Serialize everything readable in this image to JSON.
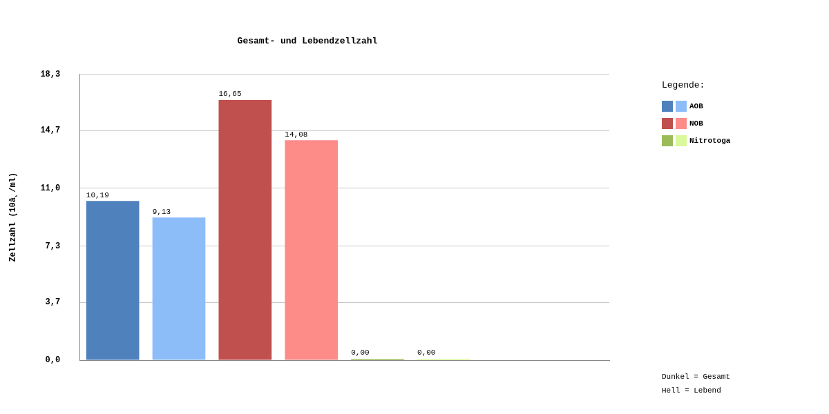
{
  "chart_data": {
    "type": "bar",
    "title": "Gesamt- und Lebendzellzahl",
    "ylabel": "Zellzahl (10â¸/ml)",
    "legend_title": "Legende:",
    "annotations": [
      "Dunkel = Gesamt",
      "Hell = Lebend"
    ],
    "categories": [
      null,
      null,
      null,
      null,
      null,
      null,
      null,
      null
    ],
    "series": [
      {
        "name": "AOB",
        "colors": [
          "#4f81bd",
          "#8dbdf9",
          "#4f81bd",
          "#8dbdf9",
          "#4f81bd",
          "#8dbdf9",
          "#4f81bd",
          "#8dbdf9"
        ],
        "values": [
          10.19,
          9.13,
          null,
          null,
          null,
          null,
          null,
          null
        ],
        "value_labels": [
          "10,19",
          "9,13",
          null,
          null,
          null,
          null,
          null,
          null
        ]
      },
      {
        "name": "NOB",
        "colors": [
          "#c0504d",
          "#fd8c89",
          "#c0504d",
          "#fd8c89",
          "#c0504d",
          "#fd8c89",
          "#c0504d",
          "#fd8c89"
        ],
        "values": [
          null,
          null,
          16.65,
          14.08,
          null,
          null,
          null,
          null
        ],
        "value_labels": [
          null,
          null,
          "16,65",
          "14,08",
          null,
          null,
          null,
          null
        ]
      },
      {
        "name": "Nitrotoga",
        "colors": [
          "#9bbb59",
          "#d9f99a",
          "#9bbb59",
          "#d9f99a",
          "#9bbb59",
          "#d9f99a",
          "#9bbb59",
          "#d9f99a"
        ],
        "values": [
          null,
          null,
          null,
          null,
          0,
          0,
          null,
          null
        ],
        "value_labels": [
          null,
          null,
          null,
          null,
          "0,00",
          "0,00",
          null,
          null
        ]
      }
    ],
    "ylim": [
      0,
      18.3
    ],
    "yticks": [
      {
        "value": 0,
        "label": "0,0"
      },
      {
        "value": 3.7,
        "label": "3,7"
      },
      {
        "value": 7.3,
        "label": "7,3"
      },
      {
        "value": 11,
        "label": "11,0"
      },
      {
        "value": 14.7,
        "label": "14,7"
      },
      {
        "value": 18.3,
        "label": "18,3"
      }
    ],
    "grid": "y",
    "legend": "right"
  }
}
